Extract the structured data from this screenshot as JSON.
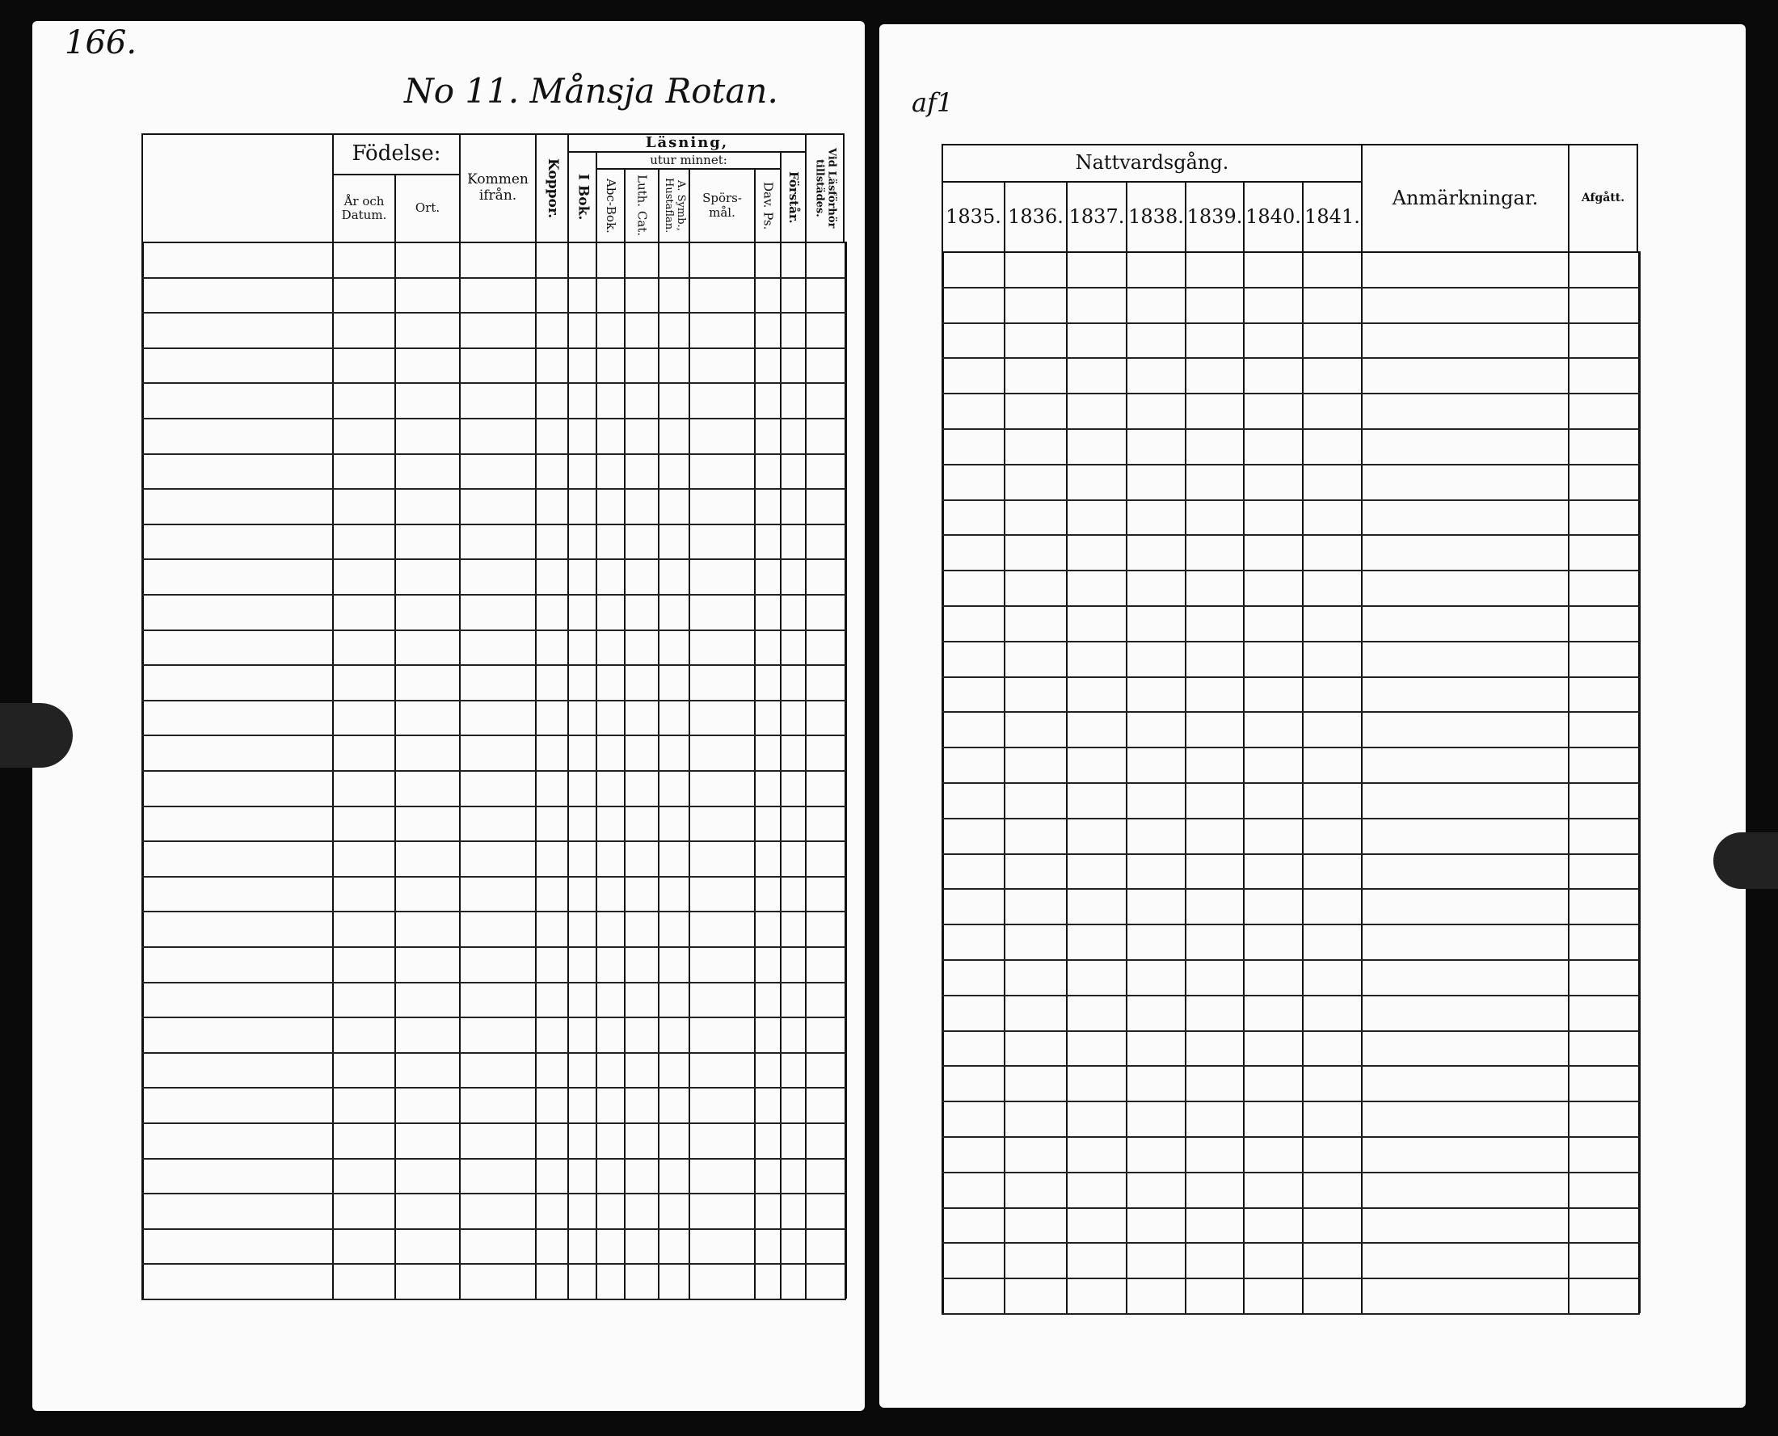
{
  "left_page": {
    "page_number": "166.",
    "heading": "No 11. Månsja Rotan.",
    "headers": {
      "fodelse": "Födelse:",
      "ar_och_datum": "År och Datum.",
      "ort": "Ort.",
      "kommen_ifran": "Kommen ifrån.",
      "koppor": "Koppor.",
      "lasning": "Läsning,",
      "utur_minnet": "utur minnet:",
      "i_bok": "I Bok.",
      "abc_bok": "Abc-Bok.",
      "luth_cat": "Luth. Cat.",
      "symb_hustaflan": "A. Symb., Hustaflan.",
      "sporsmal": "Spörs-mål.",
      "dav_ps": "Dav. Ps.",
      "forstar": "Förstår.",
      "vid_lasforhor": "Vid Läsförhör tillstädes."
    }
  },
  "right_page": {
    "page_mark": "af1",
    "headers": {
      "nattvardsgang": "Nattvardsgång.",
      "years": [
        "1835.",
        "1836.",
        "1837.",
        "1838.",
        "1839.",
        "1840.",
        "1841."
      ],
      "anmarkningar": "Anmärkningar.",
      "afgatt": "Afgått."
    }
  },
  "colors": {
    "paper": "#fbfbfb",
    "ink": "#111111",
    "background": "#0a0a0a"
  }
}
